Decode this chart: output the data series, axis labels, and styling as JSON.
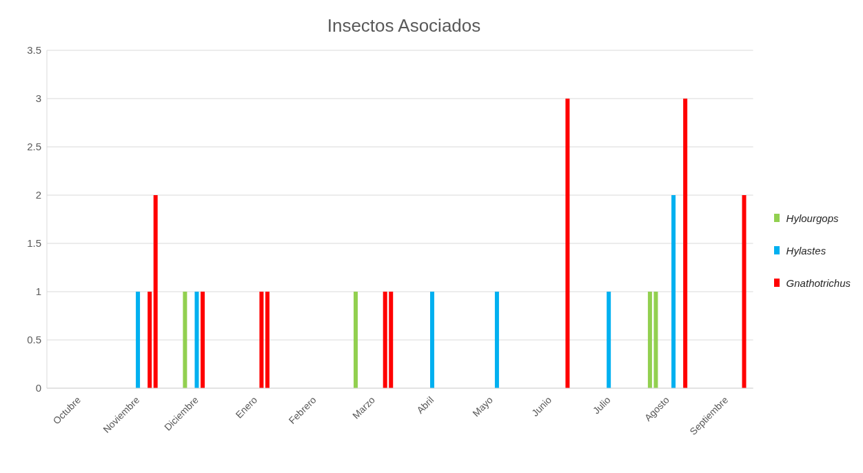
{
  "chart_data": {
    "type": "bar",
    "title": "Insectos Asociados",
    "categories": [
      null,
      null,
      null,
      null,
      null,
      "Octubre",
      null,
      null,
      null,
      null,
      null,
      null,
      null,
      null,
      null,
      "Noviembre",
      null,
      null,
      null,
      null,
      null,
      null,
      null,
      null,
      null,
      "Diciembre",
      null,
      null,
      null,
      null,
      null,
      null,
      null,
      null,
      null,
      "Enero",
      null,
      null,
      null,
      null,
      null,
      null,
      null,
      null,
      null,
      "Febrero",
      null,
      null,
      null,
      null,
      null,
      null,
      null,
      null,
      null,
      "Marzo",
      null,
      null,
      null,
      null,
      null,
      null,
      null,
      null,
      null,
      "Abril",
      null,
      null,
      null,
      null,
      null,
      null,
      null,
      null,
      null,
      "Mayo",
      null,
      null,
      null,
      null,
      null,
      null,
      null,
      null,
      null,
      "Junio",
      null,
      null,
      null,
      null,
      null,
      null,
      null,
      null,
      null,
      "Julio",
      null,
      null,
      null,
      null,
      null,
      null,
      null,
      null,
      null,
      "Agosto",
      null,
      null,
      null,
      null,
      null,
      null,
      null,
      null,
      null,
      "Septiembre",
      null,
      null,
      null,
      null
    ],
    "ylim": [
      0,
      3.5
    ],
    "yticks": [
      0,
      0.5,
      1,
      1.5,
      2,
      2.5,
      3,
      3.5
    ],
    "grid": "y",
    "legend": "right",
    "series": [
      {
        "name": "Hylourgops",
        "color": "#92d050",
        "values": [
          null,
          null,
          null,
          null,
          null,
          null,
          null,
          null,
          null,
          null,
          null,
          null,
          null,
          null,
          null,
          null,
          null,
          null,
          null,
          null,
          null,
          null,
          null,
          1,
          null,
          null,
          null,
          null,
          null,
          null,
          null,
          null,
          null,
          null,
          null,
          null,
          null,
          null,
          null,
          null,
          null,
          null,
          null,
          null,
          null,
          null,
          null,
          null,
          null,
          null,
          null,
          null,
          1,
          null,
          null,
          null,
          null,
          null,
          null,
          null,
          null,
          null,
          null,
          null,
          null,
          null,
          null,
          null,
          null,
          null,
          null,
          null,
          null,
          null,
          null,
          null,
          null,
          null,
          null,
          null,
          null,
          null,
          null,
          null,
          null,
          null,
          null,
          null,
          null,
          null,
          null,
          null,
          null,
          null,
          null,
          null,
          null,
          null,
          null,
          null,
          null,
          null,
          1,
          1,
          null,
          null,
          null,
          null,
          null,
          null,
          null,
          null,
          null,
          null,
          null,
          null,
          null,
          null,
          null,
          null
        ]
      },
      {
        "name": "Hylastes",
        "color": "#00b0f0",
        "values": [
          null,
          null,
          null,
          null,
          null,
          null,
          null,
          null,
          null,
          null,
          null,
          null,
          null,
          null,
          null,
          1,
          null,
          null,
          null,
          null,
          null,
          null,
          null,
          null,
          null,
          1,
          null,
          null,
          null,
          null,
          null,
          null,
          null,
          null,
          null,
          null,
          null,
          null,
          null,
          null,
          null,
          null,
          null,
          null,
          null,
          null,
          null,
          null,
          null,
          null,
          null,
          null,
          null,
          null,
          null,
          null,
          null,
          null,
          null,
          null,
          null,
          null,
          null,
          null,
          null,
          1,
          null,
          null,
          null,
          null,
          null,
          null,
          null,
          null,
          null,
          null,
          1,
          null,
          null,
          null,
          null,
          null,
          null,
          null,
          null,
          null,
          null,
          null,
          null,
          null,
          null,
          null,
          null,
          null,
          null,
          1,
          null,
          null,
          null,
          null,
          null,
          null,
          null,
          null,
          null,
          null,
          2,
          null,
          null,
          null,
          null,
          null,
          null,
          null,
          null,
          null,
          null,
          null,
          null,
          null
        ]
      },
      {
        "name": "Gnathotrichus",
        "color": "#ff0000",
        "values": [
          null,
          null,
          null,
          null,
          null,
          null,
          null,
          null,
          null,
          null,
          null,
          null,
          null,
          null,
          null,
          null,
          null,
          1,
          2,
          null,
          null,
          null,
          null,
          null,
          null,
          null,
          1,
          null,
          null,
          null,
          null,
          null,
          null,
          null,
          null,
          null,
          1,
          1,
          null,
          null,
          null,
          null,
          null,
          null,
          null,
          null,
          null,
          null,
          null,
          null,
          null,
          null,
          null,
          null,
          null,
          null,
          null,
          1,
          1,
          null,
          null,
          null,
          null,
          null,
          null,
          null,
          null,
          null,
          null,
          null,
          null,
          null,
          null,
          null,
          null,
          null,
          null,
          null,
          null,
          null,
          null,
          null,
          null,
          null,
          null,
          null,
          null,
          null,
          3,
          null,
          null,
          null,
          null,
          null,
          null,
          null,
          null,
          null,
          null,
          null,
          null,
          null,
          null,
          null,
          null,
          null,
          null,
          null,
          3,
          null,
          null,
          null,
          null,
          null,
          null,
          null,
          null,
          null,
          2,
          null
        ]
      }
    ]
  }
}
